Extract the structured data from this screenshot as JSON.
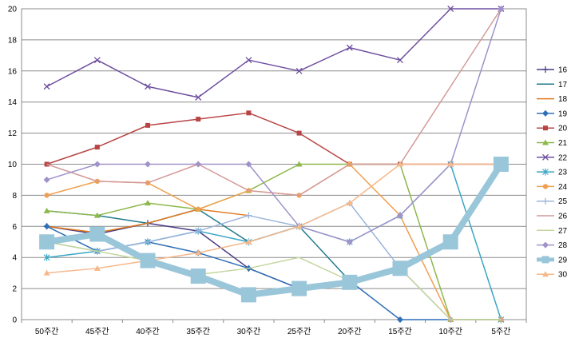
{
  "chart_data": {
    "type": "line",
    "title": "",
    "xlabel": "",
    "ylabel": "",
    "categories": [
      "50주간",
      "45주간",
      "40주간",
      "35주간",
      "30주간",
      "25주간",
      "20주간",
      "15주간",
      "10주간",
      "5주간"
    ],
    "ylim": [
      0,
      20
    ],
    "yticks": [
      0,
      2,
      4,
      6,
      8,
      10,
      12,
      14,
      16,
      18,
      20
    ],
    "grid": true,
    "legend_position": "right",
    "series": [
      {
        "name": "16",
        "color": "#4b3a82",
        "marker": "plus",
        "values": [
          6,
          5.5,
          6.2,
          5.7,
          3.3,
          2,
          null,
          null,
          null,
          null
        ]
      },
      {
        "name": "17",
        "color": "#1f7a8c",
        "marker": "none",
        "values": [
          7,
          6.7,
          6.2,
          7.1,
          5,
          6,
          2.5,
          null,
          null,
          null
        ]
      },
      {
        "name": "18",
        "color": "#e07a1f",
        "marker": "none",
        "values": [
          6,
          5.6,
          6.2,
          7.1,
          6.7,
          null,
          null,
          null,
          null,
          null
        ]
      },
      {
        "name": "19",
        "color": "#2e6fb7",
        "marker": "diamond",
        "values": [
          6,
          4.4,
          5,
          4.3,
          3.3,
          2,
          2.5,
          0,
          0,
          0
        ]
      },
      {
        "name": "20",
        "color": "#b84545",
        "marker": "square",
        "values": [
          10,
          11.1,
          12.5,
          12.9,
          13.3,
          12,
          10,
          10,
          10,
          10
        ]
      },
      {
        "name": "21",
        "color": "#8db84a",
        "marker": "triangle",
        "values": [
          7,
          6.7,
          7.5,
          7.1,
          8.3,
          10,
          10,
          10,
          0,
          0
        ]
      },
      {
        "name": "22",
        "color": "#6e4fa0",
        "marker": "x",
        "values": [
          15,
          16.7,
          15,
          14.3,
          16.7,
          16,
          17.5,
          16.7,
          20,
          20
        ]
      },
      {
        "name": "23",
        "color": "#3aa6c4",
        "marker": "asterisk",
        "values": [
          4,
          4.4,
          5,
          5.7,
          5,
          6,
          5,
          6.7,
          10,
          0
        ]
      },
      {
        "name": "24",
        "color": "#f0a050",
        "marker": "circle",
        "values": [
          8,
          8.9,
          8.8,
          7.1,
          8.3,
          8,
          10,
          6.7,
          0,
          0
        ]
      },
      {
        "name": "25",
        "color": "#9bb4da",
        "marker": "plus",
        "values": [
          5,
          4.4,
          5,
          5.7,
          6.7,
          6,
          7.5,
          3.3,
          0,
          0
        ]
      },
      {
        "name": "26",
        "color": "#d39a9a",
        "marker": "none",
        "values": [
          10,
          8.9,
          8.8,
          10,
          8.3,
          8,
          10,
          10,
          15,
          20
        ]
      },
      {
        "name": "27",
        "color": "#c3d69b",
        "marker": "none",
        "values": [
          5,
          4.4,
          3.8,
          2.9,
          3.3,
          4,
          2.5,
          3.3,
          0,
          0
        ]
      },
      {
        "name": "28",
        "color": "#a092c9",
        "marker": "diamond",
        "values": [
          9,
          10,
          10,
          10,
          10,
          6,
          5,
          6.7,
          10,
          20
        ]
      },
      {
        "name": "29",
        "color": "#9ac6da",
        "marker": "square",
        "width": 8,
        "values": [
          5,
          5.5,
          3.8,
          2.8,
          1.6,
          2,
          2.4,
          3.3,
          5,
          10
        ]
      },
      {
        "name": "30",
        "color": "#f6b88a",
        "marker": "triangle",
        "values": [
          3,
          3.3,
          3.8,
          4.3,
          5,
          6,
          7.5,
          10,
          10,
          10
        ]
      }
    ]
  }
}
